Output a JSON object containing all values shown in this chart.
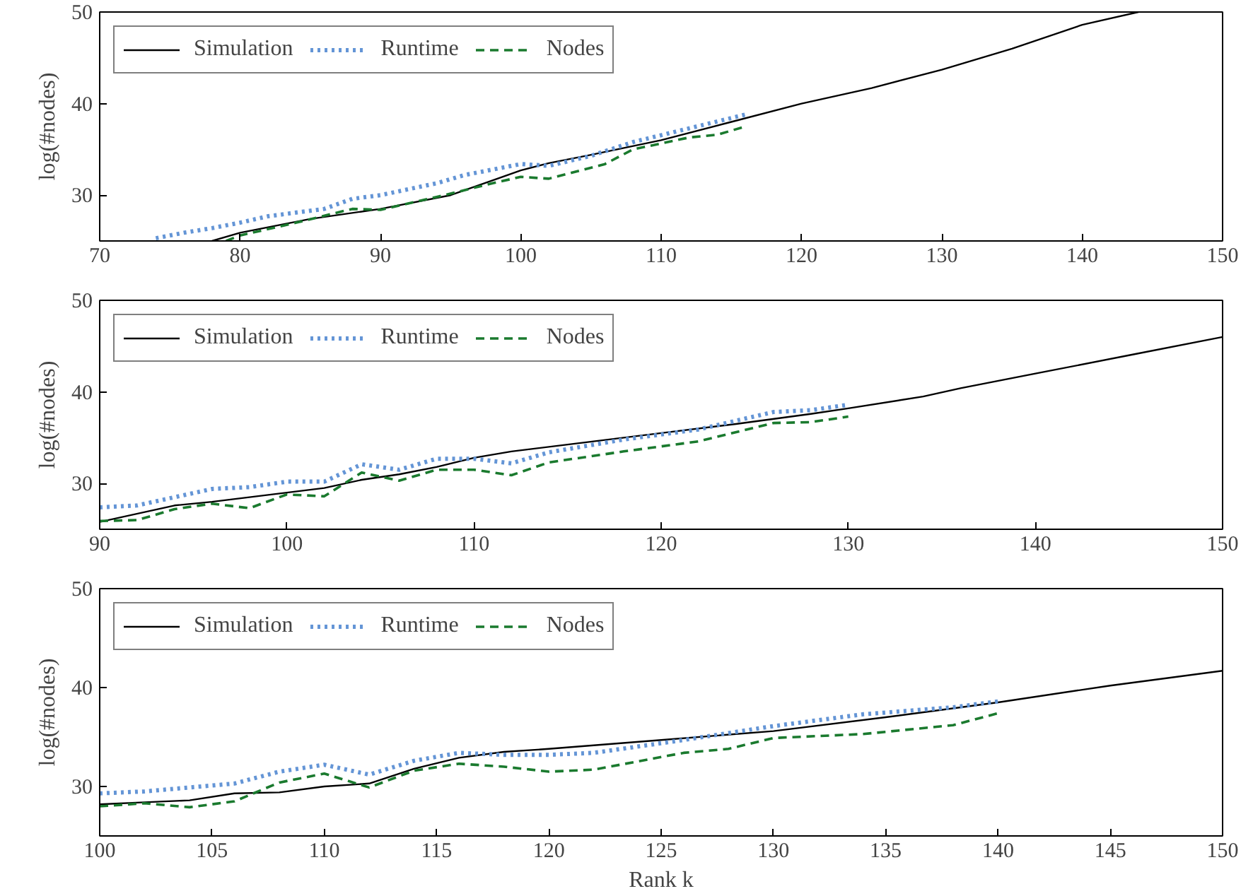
{
  "chart_data": [
    {
      "type": "line",
      "ylabel": "log(#nodes)",
      "xlim": [
        70,
        150
      ],
      "xticks": [
        70,
        80,
        90,
        100,
        110,
        120,
        130,
        140,
        150
      ],
      "ylim": [
        25,
        50
      ],
      "yticks": [
        30,
        40,
        50
      ],
      "grid": false,
      "legend": "top left",
      "series": [
        {
          "name": "Simulation",
          "color": "#000000",
          "line_style": "solid",
          "x": [
            78,
            80,
            85,
            90,
            95,
            100,
            102,
            105,
            110,
            115,
            120,
            125,
            130,
            135,
            140,
            144
          ],
          "values": [
            25,
            25.9,
            27.4,
            28.5,
            30,
            32.7,
            33.5,
            34.4,
            36,
            38,
            40,
            41.7,
            43.7,
            46,
            48.6,
            50
          ]
        },
        {
          "name": "Runtime",
          "color": "#6495d6",
          "line_style": "dotted",
          "x": [
            74,
            76,
            78,
            80,
            82,
            86,
            88,
            90,
            94,
            96,
            100,
            102,
            105,
            108,
            112,
            116
          ],
          "values": [
            25.3,
            25.9,
            26.4,
            27,
            27.7,
            28.5,
            29.6,
            30,
            31.3,
            32.2,
            33.4,
            33.2,
            34.3,
            35.8,
            37.3,
            38.8
          ]
        },
        {
          "name": "Nodes",
          "color": "#1a7a2e",
          "line_style": "dashed",
          "x": [
            79,
            80,
            84,
            88,
            90,
            94,
            98,
            100,
            102,
            106,
            108,
            112,
            114,
            116
          ],
          "values": [
            25,
            25.6,
            27,
            28.5,
            28.4,
            29.8,
            31.3,
            32,
            31.8,
            33.4,
            35,
            36.3,
            36.6,
            37.5
          ]
        }
      ]
    },
    {
      "type": "line",
      "ylabel": "log(#nodes)",
      "xlim": [
        90,
        150
      ],
      "xticks": [
        90,
        100,
        110,
        120,
        130,
        140,
        150
      ],
      "ylim": [
        25,
        50
      ],
      "yticks": [
        30,
        40,
        50
      ],
      "grid": false,
      "legend": "top left",
      "series": [
        {
          "name": "Simulation",
          "color": "#000000",
          "line_style": "solid",
          "x": [
            90,
            94,
            96,
            100,
            102,
            104,
            106,
            108,
            110,
            112,
            116,
            120,
            124,
            128,
            130,
            134,
            136,
            140,
            145,
            150
          ],
          "values": [
            25.8,
            27.6,
            28,
            29,
            29.5,
            30.4,
            31,
            31.8,
            32.8,
            33.5,
            34.5,
            35.5,
            36.5,
            37.6,
            38.2,
            39.5,
            40.4,
            42,
            44,
            46
          ]
        },
        {
          "name": "Runtime",
          "color": "#6495d6",
          "line_style": "dotted",
          "x": [
            90,
            92,
            94,
            96,
            98,
            100,
            102,
            104,
            106,
            108,
            110,
            112,
            114,
            118,
            122,
            126,
            128,
            130
          ],
          "values": [
            27.4,
            27.6,
            28.5,
            29.4,
            29.6,
            30.2,
            30.2,
            32.1,
            31.5,
            32.7,
            32.7,
            32.2,
            33.4,
            34.8,
            35.9,
            37.8,
            38,
            38.6
          ]
        },
        {
          "name": "Nodes",
          "color": "#1a7a2e",
          "line_style": "dashed",
          "x": [
            90,
            92,
            94,
            96,
            98,
            100,
            102,
            104,
            106,
            108,
            110,
            112,
            114,
            118,
            122,
            126,
            128,
            130
          ],
          "values": [
            25.9,
            26,
            27.2,
            27.8,
            27.3,
            28.8,
            28.6,
            31.2,
            30.3,
            31.5,
            31.5,
            30.9,
            32.3,
            33.5,
            34.6,
            36.6,
            36.7,
            37.3
          ]
        }
      ]
    },
    {
      "type": "line",
      "xlabel": "Rank k",
      "ylabel": "log(#nodes)",
      "xlim": [
        100,
        150
      ],
      "xticks": [
        100,
        105,
        110,
        115,
        120,
        125,
        130,
        135,
        140,
        145,
        150
      ],
      "ylim": [
        25,
        50
      ],
      "yticks": [
        30,
        40,
        50
      ],
      "grid": false,
      "legend": "top left",
      "series": [
        {
          "name": "Simulation",
          "color": "#000000",
          "line_style": "solid",
          "x": [
            100,
            102,
            104,
            106,
            108,
            110,
            112,
            114,
            116,
            118,
            120,
            125,
            130,
            135,
            140,
            145,
            150
          ],
          "values": [
            28.2,
            28.4,
            28.6,
            29.3,
            29.4,
            30,
            30.3,
            31.8,
            32.9,
            33.5,
            33.8,
            34.7,
            35.6,
            37,
            38.5,
            40.2,
            41.7
          ]
        },
        {
          "name": "Runtime",
          "color": "#6495d6",
          "line_style": "dotted",
          "x": [
            100,
            102,
            104,
            106,
            108,
            110,
            112,
            114,
            116,
            118,
            120,
            122,
            126,
            130,
            134,
            138,
            140
          ],
          "values": [
            29.3,
            29.5,
            29.9,
            30.3,
            31.5,
            32.2,
            31.2,
            32.6,
            33.4,
            33.2,
            33.2,
            33.4,
            34.7,
            36.1,
            37.3,
            38,
            38.6
          ]
        },
        {
          "name": "Nodes",
          "color": "#1a7a2e",
          "line_style": "dashed",
          "x": [
            100,
            102,
            104,
            106,
            108,
            110,
            112,
            114,
            116,
            118,
            120,
            122,
            126,
            128,
            130,
            134,
            138,
            140
          ],
          "values": [
            28,
            28.3,
            27.9,
            28.5,
            30.4,
            31.3,
            29.9,
            31.6,
            32.3,
            32,
            31.5,
            31.7,
            33.4,
            33.8,
            34.9,
            35.3,
            36.2,
            37.4
          ]
        }
      ]
    }
  ]
}
